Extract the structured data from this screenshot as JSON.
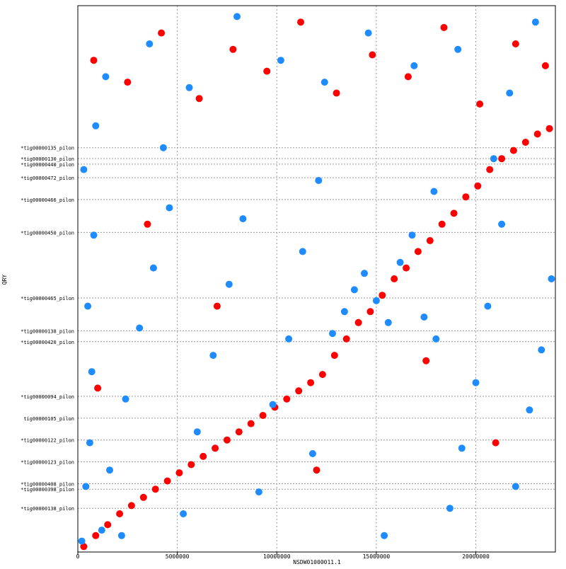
{
  "chart_data": {
    "type": "scatter",
    "title": "",
    "xlabel": "NSDW01000011.1",
    "ylabel": "QRY",
    "xlim": [
      0,
      24000000
    ],
    "x_ticks": [
      0,
      5000000,
      10000000,
      15000000,
      20000000
    ],
    "x_tick_labels": [
      "0",
      "5000000",
      "10000000",
      "15000000",
      "20000000"
    ],
    "grid": true,
    "legend": "none",
    "colors": {
      "forward": "#ff0000",
      "reverse": "#1e8cff",
      "grid": "#9a9a9a",
      "axis": "#000000"
    },
    "query_contigs": [
      {
        "label": "tig00000138_pilon",
        "position": 0.08,
        "strand": "reverse"
      },
      {
        "label": "tig00000398_pilon",
        "position": 0.115,
        "strand": "reverse"
      },
      {
        "label": "tig00000408_pilon",
        "position": 0.125,
        "strand": "reverse"
      },
      {
        "label": "tig00000123_pilon",
        "position": 0.165,
        "strand": "reverse"
      },
      {
        "label": "tig00000122_pilon",
        "position": 0.205,
        "strand": "reverse"
      },
      {
        "label": "tig00000105_pilon",
        "position": 0.245,
        "strand": "forward"
      },
      {
        "label": "tig00000094_pilon",
        "position": 0.285,
        "strand": "reverse"
      },
      {
        "label": "tig00000420_pilon",
        "position": 0.385,
        "strand": "reverse"
      },
      {
        "label": "tig00000138_pilon",
        "position": 0.405,
        "strand": "reverse"
      },
      {
        "label": "tig00000465_pilon",
        "position": 0.465,
        "strand": "reverse"
      },
      {
        "label": "tig00000450_pilon",
        "position": 0.585,
        "strand": "reverse"
      },
      {
        "label": "tig00000466_pilon",
        "position": 0.645,
        "strand": "reverse"
      },
      {
        "label": "tig00000472_pilon",
        "position": 0.685,
        "strand": "reverse"
      },
      {
        "label": "tig00000440_pilon",
        "position": 0.71,
        "strand": "reverse"
      },
      {
        "label": "tig00000130_pilon",
        "position": 0.72,
        "strand": "reverse"
      },
      {
        "label": "tig00000135_pilon",
        "position": 0.74,
        "strand": "reverse"
      }
    ],
    "series": [
      {
        "name": "",
        "strand": "forward",
        "points": [
          [
            300000,
            0.01
          ],
          [
            900000,
            0.03
          ],
          [
            1500000,
            0.05
          ],
          [
            2100000,
            0.07
          ],
          [
            2700000,
            0.085
          ],
          [
            3300000,
            0.1
          ],
          [
            3900000,
            0.115
          ],
          [
            4500000,
            0.13
          ],
          [
            5100000,
            0.145
          ],
          [
            5700000,
            0.16
          ],
          [
            6300000,
            0.175
          ],
          [
            6900000,
            0.19
          ],
          [
            7500000,
            0.205
          ],
          [
            8100000,
            0.22
          ],
          [
            8700000,
            0.235
          ],
          [
            9300000,
            0.25
          ],
          [
            9900000,
            0.265
          ],
          [
            10500000,
            0.28
          ],
          [
            11100000,
            0.295
          ],
          [
            11700000,
            0.31
          ],
          [
            12300000,
            0.325
          ],
          [
            12900000,
            0.36
          ],
          [
            13500000,
            0.39
          ],
          [
            14100000,
            0.42
          ],
          [
            14700000,
            0.44
          ],
          [
            15300000,
            0.47
          ],
          [
            15900000,
            0.5
          ],
          [
            16500000,
            0.52
          ],
          [
            17100000,
            0.55
          ],
          [
            17700000,
            0.57
          ],
          [
            18300000,
            0.6
          ],
          [
            18900000,
            0.62
          ],
          [
            19500000,
            0.65
          ],
          [
            20100000,
            0.67
          ],
          [
            20700000,
            0.7
          ],
          [
            21300000,
            0.72
          ],
          [
            21900000,
            0.735
          ],
          [
            22500000,
            0.75
          ],
          [
            23100000,
            0.765
          ],
          [
            23700000,
            0.775
          ],
          [
            800000,
            0.9
          ],
          [
            2500000,
            0.86
          ],
          [
            4200000,
            0.95
          ],
          [
            6100000,
            0.83
          ],
          [
            7800000,
            0.92
          ],
          [
            9500000,
            0.88
          ],
          [
            11200000,
            0.97
          ],
          [
            13000000,
            0.84
          ],
          [
            14800000,
            0.91
          ],
          [
            16600000,
            0.87
          ],
          [
            18400000,
            0.96
          ],
          [
            20200000,
            0.82
          ],
          [
            22000000,
            0.93
          ],
          [
            23500000,
            0.89
          ],
          [
            3500000,
            0.6
          ],
          [
            7000000,
            0.45
          ],
          [
            12000000,
            0.15
          ],
          [
            17500000,
            0.35
          ],
          [
            21000000,
            0.2
          ],
          [
            1000000,
            0.3
          ]
        ]
      },
      {
        "name": "",
        "strand": "reverse",
        "points": [
          [
            200000,
            0.02
          ],
          [
            1200000,
            0.04
          ],
          [
            2200000,
            0.03
          ],
          [
            400000,
            0.12
          ],
          [
            600000,
            0.2
          ],
          [
            700000,
            0.33
          ],
          [
            500000,
            0.45
          ],
          [
            800000,
            0.58
          ],
          [
            300000,
            0.7
          ],
          [
            900000,
            0.78
          ],
          [
            1600000,
            0.15
          ],
          [
            2400000,
            0.28
          ],
          [
            3100000,
            0.41
          ],
          [
            3800000,
            0.52
          ],
          [
            4600000,
            0.63
          ],
          [
            5300000,
            0.07
          ],
          [
            6000000,
            0.22
          ],
          [
            6800000,
            0.36
          ],
          [
            7600000,
            0.49
          ],
          [
            8300000,
            0.61
          ],
          [
            9100000,
            0.11
          ],
          [
            9800000,
            0.27
          ],
          [
            10600000,
            0.39
          ],
          [
            11300000,
            0.55
          ],
          [
            12100000,
            0.68
          ],
          [
            12800000,
            0.4
          ],
          [
            13400000,
            0.44
          ],
          [
            13900000,
            0.48
          ],
          [
            14400000,
            0.51
          ],
          [
            15000000,
            0.46
          ],
          [
            15600000,
            0.42
          ],
          [
            16200000,
            0.53
          ],
          [
            16800000,
            0.58
          ],
          [
            17400000,
            0.43
          ],
          [
            18000000,
            0.39
          ],
          [
            18700000,
            0.08
          ],
          [
            19300000,
            0.19
          ],
          [
            20000000,
            0.31
          ],
          [
            20600000,
            0.45
          ],
          [
            21300000,
            0.6
          ],
          [
            22000000,
            0.12
          ],
          [
            22700000,
            0.26
          ],
          [
            23300000,
            0.37
          ],
          [
            23800000,
            0.5
          ],
          [
            15400000,
            0.03
          ],
          [
            1400000,
            0.87
          ],
          [
            3600000,
            0.93
          ],
          [
            5600000,
            0.85
          ],
          [
            8000000,
            0.98
          ],
          [
            10200000,
            0.9
          ],
          [
            12400000,
            0.86
          ],
          [
            14600000,
            0.95
          ],
          [
            16900000,
            0.89
          ],
          [
            19100000,
            0.92
          ],
          [
            21700000,
            0.84
          ],
          [
            23000000,
            0.97
          ],
          [
            4300000,
            0.74
          ],
          [
            11800000,
            0.18
          ],
          [
            17900000,
            0.66
          ],
          [
            20900000,
            0.72
          ]
        ]
      }
    ]
  }
}
